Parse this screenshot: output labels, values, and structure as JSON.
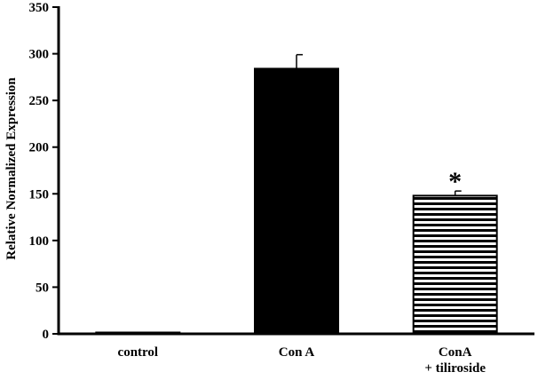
{
  "chart_data": {
    "type": "bar",
    "title": "",
    "xlabel": "",
    "ylabel": "Relative Normalized Expression",
    "ylim": [
      0,
      350
    ],
    "yticks": [
      0,
      50,
      100,
      150,
      200,
      250,
      300,
      350
    ],
    "grid": false,
    "categories": [
      [
        "control"
      ],
      [
        "Con A"
      ],
      [
        "ConA",
        "+ tiliroside"
      ]
    ],
    "values": [
      1,
      284,
      148
    ],
    "errors": [
      0,
      15,
      5
    ],
    "bar_fills": [
      "solid-black",
      "solid-black",
      "horizontal-stripes"
    ],
    "annotations": [
      {
        "category_index": 2,
        "text": "*"
      }
    ],
    "colors": {
      "bar": "#000000",
      "stripe_bg": "#ffffff",
      "axis": "#000000"
    }
  }
}
